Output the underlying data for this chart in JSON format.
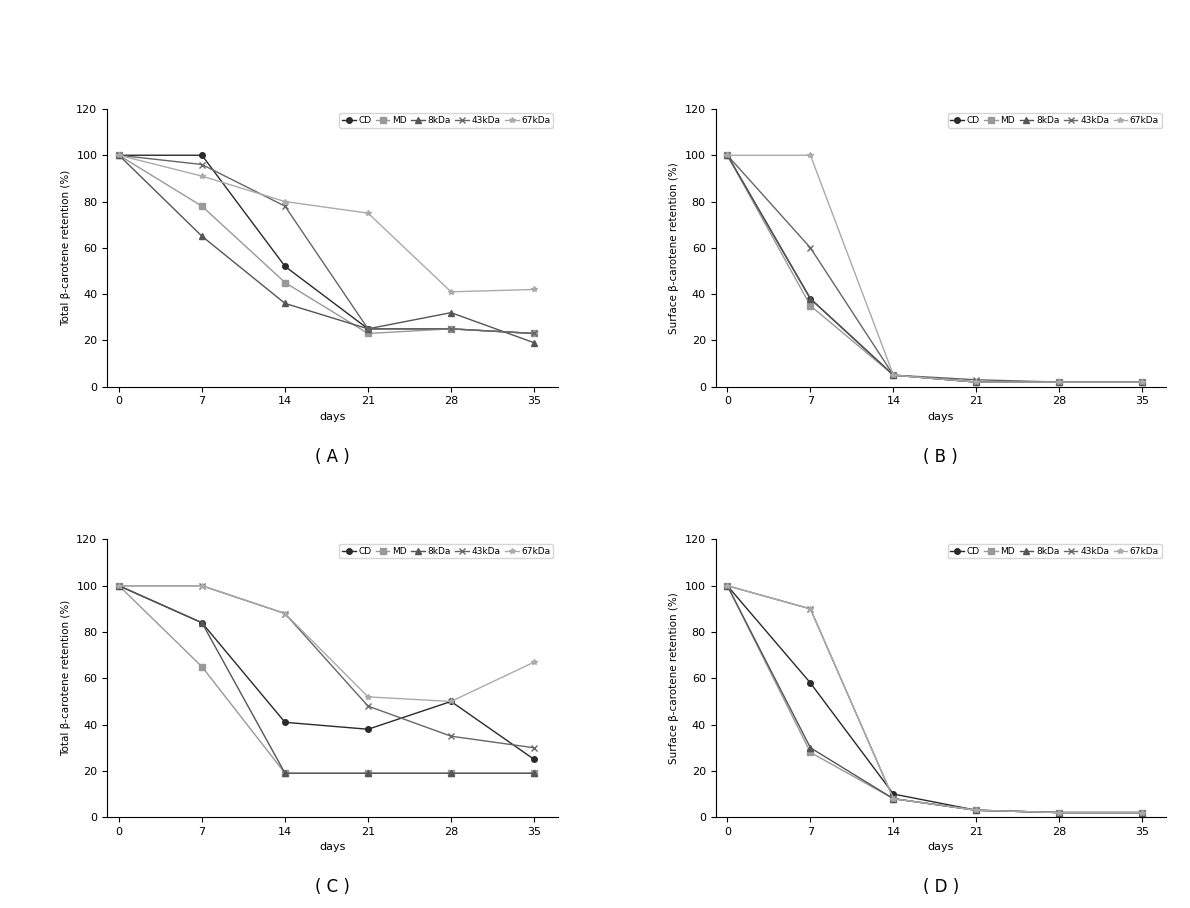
{
  "days": [
    0,
    7,
    14,
    21,
    28,
    35
  ],
  "panel_A": {
    "title": "( A )",
    "ylabel": "Total β-carotene retention (%)",
    "CD": [
      100,
      100,
      52,
      25,
      25,
      23
    ],
    "MD": [
      100,
      78,
      45,
      23,
      25,
      23
    ],
    "8kDa": [
      100,
      65,
      36,
      25,
      32,
      19
    ],
    "43kDa": [
      100,
      96,
      78,
      25,
      25,
      23
    ],
    "67kDa": [
      100,
      91,
      80,
      75,
      41,
      42
    ]
  },
  "panel_B": {
    "title": "( B )",
    "ylabel": "Surface β-carotene retention (%)",
    "CD": [
      100,
      38,
      5,
      2,
      2,
      2
    ],
    "MD": [
      100,
      35,
      5,
      2,
      2,
      2
    ],
    "8kDa": [
      100,
      38,
      5,
      2,
      2,
      2
    ],
    "43kDa": [
      100,
      60,
      5,
      3,
      2,
      2
    ],
    "67kDa": [
      100,
      100,
      5,
      2,
      2,
      2
    ]
  },
  "panel_C": {
    "title": "( C )",
    "ylabel": "Total β-carotene retention (%)",
    "CD": [
      100,
      84,
      41,
      38,
      50,
      25
    ],
    "MD": [
      100,
      65,
      19,
      19,
      19,
      19
    ],
    "8kDa": [
      100,
      84,
      19,
      19,
      19,
      19
    ],
    "43kDa": [
      100,
      100,
      88,
      48,
      35,
      30
    ],
    "67kDa": [
      100,
      100,
      88,
      52,
      50,
      67
    ]
  },
  "panel_D": {
    "title": "( D )",
    "ylabel": "Surface β-carotene retention (%)",
    "CD": [
      100,
      58,
      10,
      3,
      2,
      2
    ],
    "MD": [
      100,
      28,
      8,
      3,
      2,
      2
    ],
    "8kDa": [
      100,
      30,
      8,
      3,
      2,
      2
    ],
    "43kDa": [
      100,
      90,
      8,
      3,
      2,
      2
    ],
    "67kDa": [
      100,
      90,
      8,
      3,
      2,
      2
    ]
  },
  "series_colors": {
    "CD": "#2a2a2a",
    "MD": "#999999",
    "8kDa": "#555555",
    "43kDa": "#666666",
    "67kDa": "#aaaaaa"
  },
  "series_markers": {
    "CD": "o",
    "MD": "s",
    "8kDa": "^",
    "43kDa": "x",
    "67kDa": "*"
  },
  "xticks": [
    0,
    7,
    14,
    21,
    28,
    35
  ],
  "ylim": [
    0,
    120
  ],
  "yticks": [
    0,
    20,
    40,
    60,
    80,
    100,
    120
  ],
  "xlabel": "days",
  "background": "#ffffff",
  "legend_labels": [
    "CD",
    "MD",
    "8kDa",
    "43kDa",
    "67kDa"
  ]
}
